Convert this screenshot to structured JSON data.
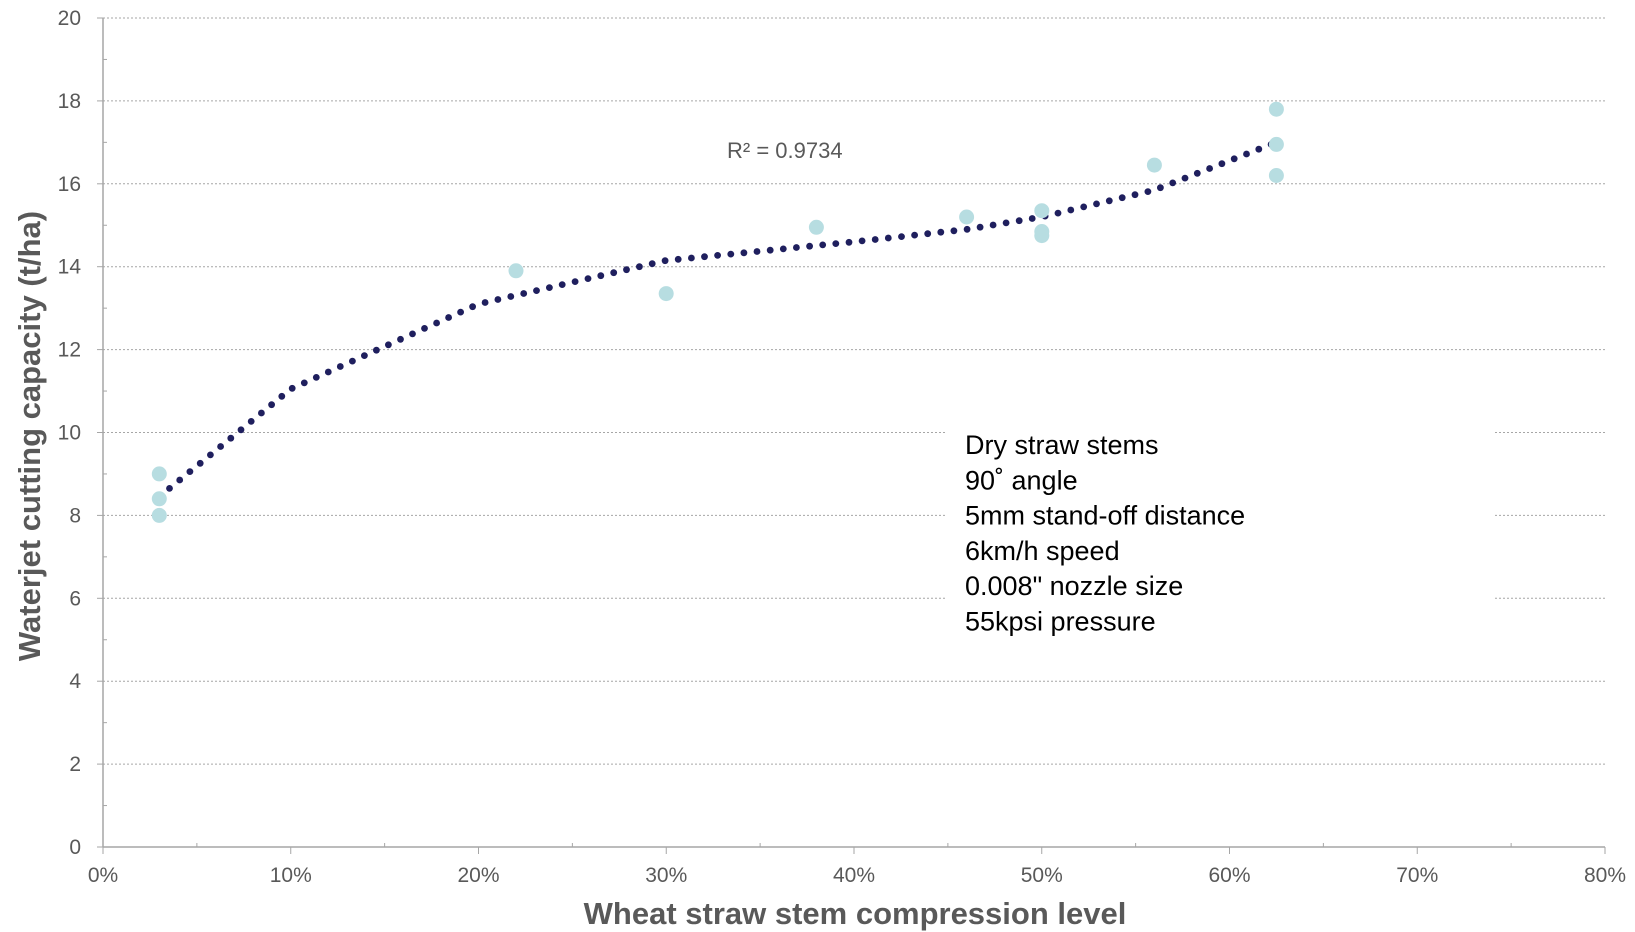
{
  "chart_data": {
    "type": "scatter",
    "xlabel": "Wheat straw stem compression level",
    "ylabel": "Waterjet cutting capacity (t/ha)",
    "xlim": [
      0,
      0.8
    ],
    "ylim": [
      0,
      20
    ],
    "x_ticks": [
      "0%",
      "10%",
      "20%",
      "30%",
      "40%",
      "50%",
      "60%",
      "70%",
      "80%"
    ],
    "y_ticks": [
      "0",
      "2",
      "4",
      "6",
      "8",
      "10",
      "12",
      "14",
      "16",
      "18",
      "20"
    ],
    "grid": "horizontal dotted",
    "series": [
      {
        "points": [
          {
            "x": 0.03,
            "y": 9.0
          },
          {
            "x": 0.03,
            "y": 8.4
          },
          {
            "x": 0.03,
            "y": 8.0
          },
          {
            "x": 0.22,
            "y": 13.9
          },
          {
            "x": 0.3,
            "y": 13.35
          },
          {
            "x": 0.38,
            "y": 14.95
          },
          {
            "x": 0.46,
            "y": 15.2
          },
          {
            "x": 0.5,
            "y": 15.35
          },
          {
            "x": 0.5,
            "y": 14.85
          },
          {
            "x": 0.5,
            "y": 14.75
          },
          {
            "x": 0.56,
            "y": 16.45
          },
          {
            "x": 0.625,
            "y": 17.8
          },
          {
            "x": 0.625,
            "y": 16.95
          },
          {
            "x": 0.625,
            "y": 16.2
          }
        ]
      }
    ],
    "trendline": {
      "style": "dotted",
      "x_range": [
        0.03,
        0.625
      ],
      "points": [
        {
          "x": 0.03,
          "y": 8.45
        },
        {
          "x": 0.1,
          "y": 11.05
        },
        {
          "x": 0.2,
          "y": 13.1
        },
        {
          "x": 0.3,
          "y": 14.15
        },
        {
          "x": 0.4,
          "y": 14.6
        },
        {
          "x": 0.46,
          "y": 14.9
        },
        {
          "x": 0.5,
          "y": 15.2
        },
        {
          "x": 0.56,
          "y": 15.85
        },
        {
          "x": 0.625,
          "y": 17.0
        }
      ],
      "label": "R² = 0.9734"
    },
    "annotation_lines": [
      "Dry straw stems",
      "90˚   angle",
      "5mm stand-off distance",
      "6km/h speed",
      "0.008\" nozzle size",
      "55kpsi pressure"
    ],
    "colors": {
      "points": "#b7dde1",
      "trendline": "#1f1f5e",
      "grid": "#a6a6a6",
      "axis": "#a6a6a6",
      "text": "#595959"
    }
  }
}
